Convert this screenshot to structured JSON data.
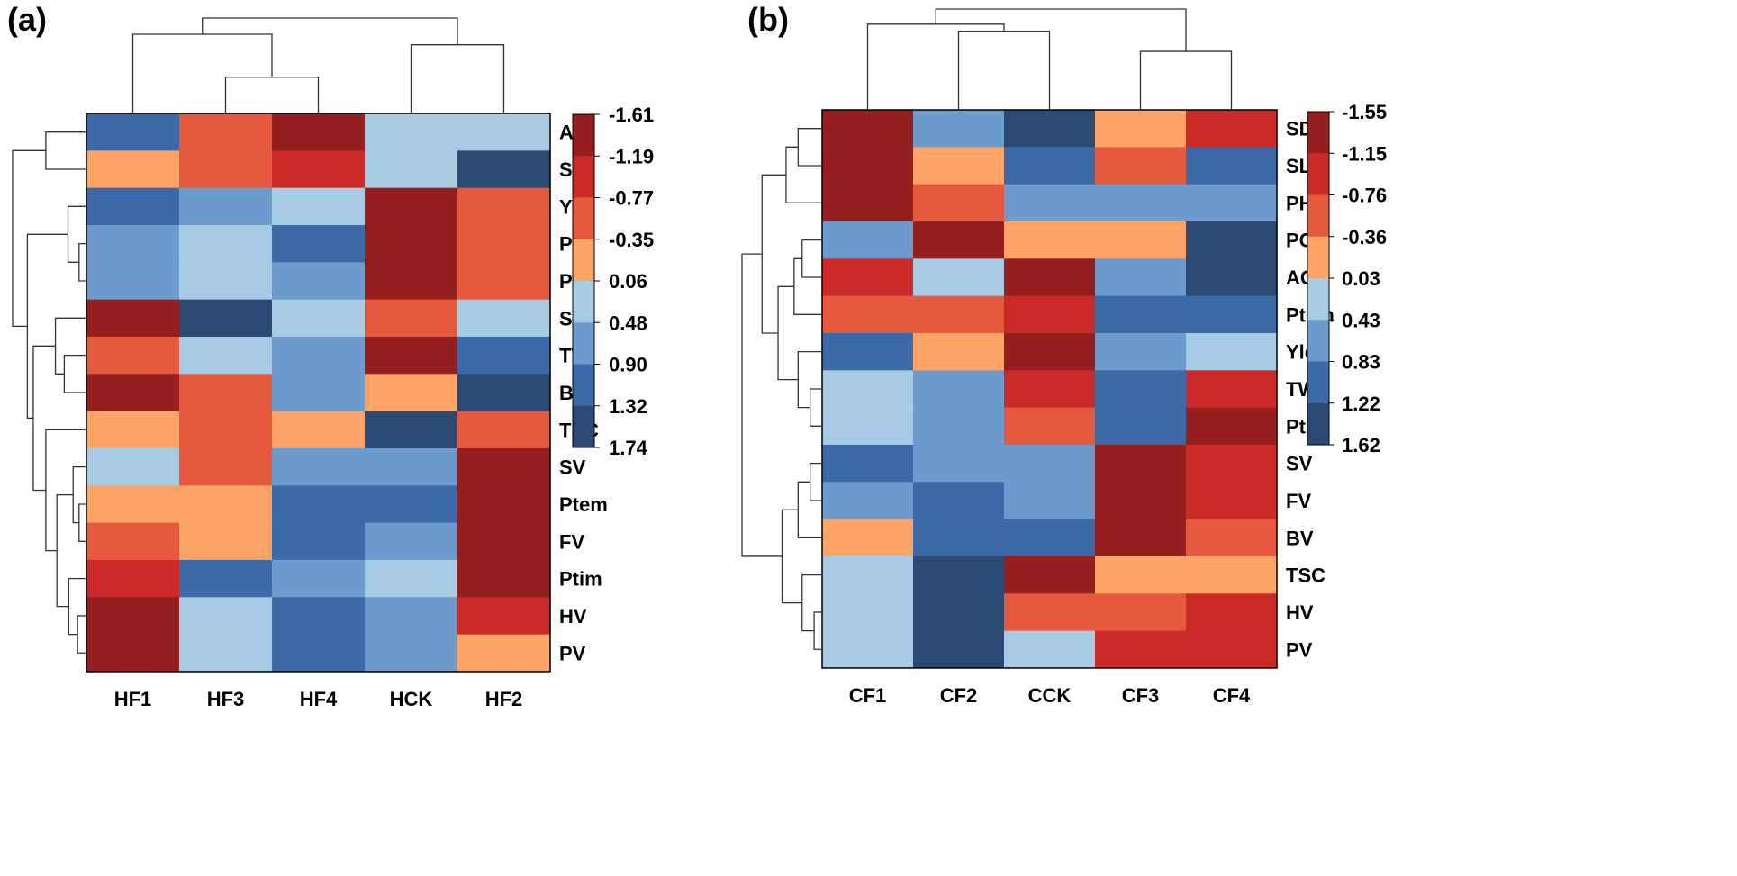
{
  "palette": [
    "#2b4a73",
    "#3c6aa8",
    "#6c9bcc",
    "#a6cbe2",
    "#fda466",
    "#e55a3e",
    "#cb2b28",
    "#941f1e"
  ],
  "panels": [
    {
      "panel_label": "(a)",
      "chart_data": {
        "type": "heatmap",
        "title": "",
        "columns": [
          "HF1",
          "HF3",
          "HF4",
          "HCK",
          "HF2"
        ],
        "rows": [
          "AC",
          "SD",
          "Yld",
          "PC",
          "PH",
          "SL",
          "TW",
          "BV",
          "TSC",
          "SV",
          "Ptem",
          "FV",
          "Ptim",
          "HV",
          "PV"
        ],
        "color_index": [
          [
            1,
            5,
            7,
            3,
            3
          ],
          [
            4,
            5,
            6,
            3,
            0
          ],
          [
            1,
            2,
            3,
            7,
            5
          ],
          [
            2,
            3,
            1,
            7,
            5
          ],
          [
            2,
            3,
            2,
            7,
            5
          ],
          [
            7,
            0,
            3,
            5,
            3
          ],
          [
            5,
            3,
            2,
            7,
            1
          ],
          [
            7,
            5,
            2,
            4,
            0
          ],
          [
            4,
            5,
            4,
            0,
            5
          ],
          [
            3,
            5,
            2,
            2,
            7
          ],
          [
            4,
            4,
            1,
            1,
            7
          ],
          [
            5,
            4,
            1,
            2,
            7
          ],
          [
            6,
            1,
            2,
            3,
            7
          ],
          [
            7,
            3,
            1,
            2,
            6
          ],
          [
            7,
            3,
            1,
            2,
            4
          ]
        ],
        "legend_labels": [
          "-1.61",
          "-1.19",
          "-0.77",
          "-0.35",
          "0.06",
          "0.48",
          "0.90",
          "1.32",
          "1.74"
        ],
        "col_dendrogram_order": [
          "HF1",
          "HF3",
          "HF4",
          "HCK",
          "HF2"
        ],
        "row_dendrogram": true
      }
    },
    {
      "panel_label": "(b)",
      "chart_data": {
        "type": "heatmap",
        "title": "",
        "columns": [
          "CF1",
          "CF2",
          "CCK",
          "CF3",
          "CF4"
        ],
        "rows": [
          "SD",
          "SL",
          "PH",
          "PC",
          "AC",
          "Ptem",
          "Yld",
          "TW",
          "Ptim",
          "SV",
          "FV",
          "BV",
          "TSC",
          "HV",
          "PV"
        ],
        "color_index": [
          [
            7,
            2,
            0,
            4,
            6
          ],
          [
            7,
            4,
            1,
            5,
            1
          ],
          [
            7,
            5,
            2,
            2,
            2
          ],
          [
            2,
            7,
            4,
            4,
            0
          ],
          [
            6,
            3,
            7,
            2,
            0
          ],
          [
            5,
            5,
            6,
            1,
            1
          ],
          [
            1,
            4,
            7,
            2,
            3
          ],
          [
            3,
            2,
            6,
            1,
            6
          ],
          [
            3,
            2,
            5,
            1,
            7
          ],
          [
            1,
            2,
            2,
            7,
            6
          ],
          [
            2,
            1,
            2,
            7,
            6
          ],
          [
            4,
            1,
            1,
            7,
            5
          ],
          [
            3,
            0,
            7,
            4,
            4
          ],
          [
            3,
            0,
            5,
            5,
            6
          ],
          [
            3,
            0,
            3,
            6,
            6
          ]
        ],
        "legend_labels": [
          "-1.55",
          "-1.15",
          "-0.76",
          "-0.36",
          "0.03",
          "0.43",
          "0.83",
          "1.22",
          "1.62"
        ],
        "col_dendrogram_order": [
          "CF1",
          "CF2",
          "CCK",
          "CF3",
          "CF4"
        ],
        "row_dendrogram": true
      }
    }
  ]
}
